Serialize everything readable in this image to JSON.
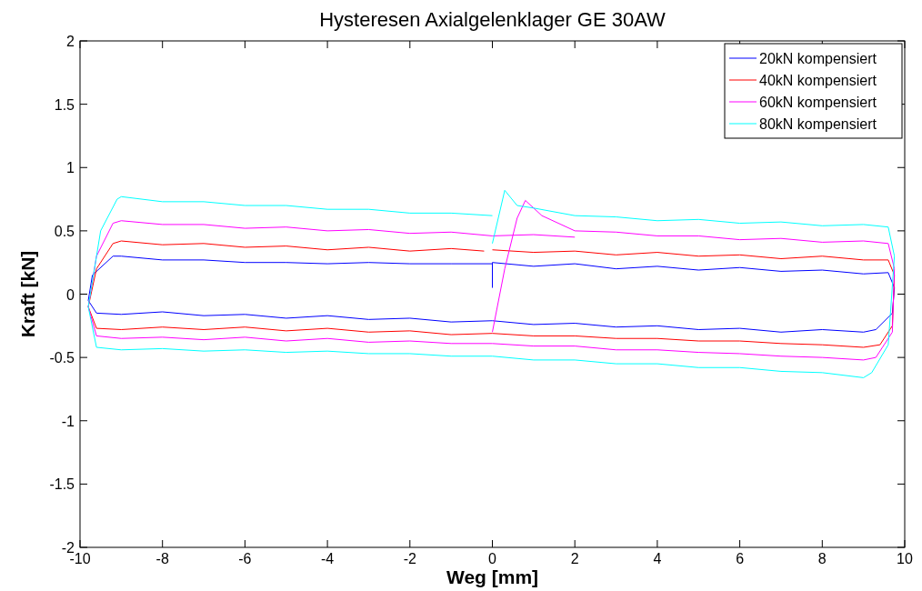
{
  "chart_data": {
    "type": "line",
    "title": "Hysteresen Axialgelenklager GE 30AW",
    "xlabel": "Weg [mm]",
    "ylabel": "Kraft [kN]",
    "xlim": [
      -10,
      10
    ],
    "ylim": [
      -2,
      2
    ],
    "xticks": [
      -10,
      -8,
      -6,
      -4,
      -2,
      0,
      2,
      4,
      6,
      8,
      10
    ],
    "yticks": [
      -2,
      -1.5,
      -1,
      -0.5,
      0,
      0.5,
      1,
      1.5,
      2
    ],
    "grid": false,
    "legend": "top right",
    "marker": "none",
    "line_style": "solid",
    "series": [
      {
        "name": "20kN kompensiert",
        "color": "#0000ff",
        "x": [
          0,
          0,
          1,
          2,
          3,
          4,
          5,
          6,
          7,
          8,
          9,
          9.6,
          9.75,
          9.7,
          9.3,
          9,
          8,
          7,
          6,
          5,
          4,
          3,
          2,
          1,
          0,
          -1,
          -2,
          -3,
          -4,
          -5,
          -6,
          -7,
          -8,
          -9,
          -9.6,
          -9.8,
          -9.7,
          -9.2,
          -9,
          -8,
          -7,
          -6,
          -5,
          -4,
          -3,
          -2,
          -1,
          0
        ],
        "values": [
          0.05,
          0.25,
          0.22,
          0.24,
          0.2,
          0.22,
          0.19,
          0.21,
          0.18,
          0.19,
          0.16,
          0.17,
          0.05,
          -0.15,
          -0.28,
          -0.3,
          -0.28,
          -0.3,
          -0.27,
          -0.28,
          -0.25,
          -0.26,
          -0.23,
          -0.24,
          -0.21,
          -0.22,
          -0.19,
          -0.2,
          -0.17,
          -0.19,
          -0.16,
          -0.17,
          -0.14,
          -0.16,
          -0.15,
          -0.05,
          0.15,
          0.3,
          0.3,
          0.27,
          0.27,
          0.25,
          0.25,
          0.24,
          0.25,
          0.24,
          0.24,
          0.24
        ]
      },
      {
        "name": "40kN kompensiert",
        "color": "#ff0000",
        "x": [
          0,
          1,
          2,
          3,
          4,
          5,
          6,
          7,
          8,
          9,
          9.6,
          9.75,
          9.7,
          9.4,
          9,
          8,
          7,
          6,
          5,
          4,
          3,
          2,
          1,
          0,
          -1,
          -2,
          -3,
          -4,
          -5,
          -6,
          -7,
          -8,
          -9,
          -9.6,
          -9.8,
          -9.6,
          -9.2,
          -9,
          -8,
          -7,
          -6,
          -5,
          -4,
          -3,
          -2,
          -1,
          -0.2
        ],
        "values": [
          0.35,
          0.33,
          0.34,
          0.31,
          0.33,
          0.3,
          0.31,
          0.28,
          0.3,
          0.27,
          0.27,
          0.15,
          -0.25,
          -0.4,
          -0.42,
          -0.4,
          -0.39,
          -0.37,
          -0.37,
          -0.35,
          -0.35,
          -0.33,
          -0.33,
          -0.31,
          -0.32,
          -0.29,
          -0.3,
          -0.27,
          -0.29,
          -0.26,
          -0.28,
          -0.26,
          -0.28,
          -0.27,
          -0.1,
          0.2,
          0.4,
          0.42,
          0.39,
          0.4,
          0.37,
          0.38,
          0.35,
          0.37,
          0.34,
          0.36,
          0.34
        ]
      },
      {
        "name": "60kN kompensiert",
        "color": "#ff00ff",
        "x": [
          0,
          0.3,
          0.6,
          0.8,
          1.2,
          2,
          3,
          4,
          5,
          6,
          7,
          8,
          9,
          9.6,
          9.75,
          9.7,
          9.3,
          9,
          8,
          7,
          6,
          5,
          4,
          3,
          2,
          1,
          0,
          -1,
          -2,
          -3,
          -4,
          -5,
          -6,
          -7,
          -8,
          -9,
          -9.6,
          -9.8,
          -9.6,
          -9.2,
          -9,
          -8,
          -7,
          -6,
          -5,
          -4,
          -3,
          -2,
          -1,
          0,
          1,
          2
        ],
        "values": [
          -0.3,
          0.2,
          0.6,
          0.74,
          0.62,
          0.5,
          0.49,
          0.46,
          0.46,
          0.43,
          0.44,
          0.41,
          0.42,
          0.4,
          0.2,
          -0.3,
          -0.5,
          -0.52,
          -0.5,
          -0.49,
          -0.47,
          -0.46,
          -0.44,
          -0.44,
          -0.41,
          -0.41,
          -0.39,
          -0.39,
          -0.37,
          -0.38,
          -0.35,
          -0.37,
          -0.34,
          -0.36,
          -0.34,
          -0.35,
          -0.33,
          -0.1,
          0.3,
          0.56,
          0.58,
          0.55,
          0.55,
          0.52,
          0.53,
          0.5,
          0.51,
          0.48,
          0.49,
          0.46,
          0.47,
          0.45
        ]
      },
      {
        "name": "80kN kompensiert",
        "color": "#00ffff",
        "x": [
          0,
          0.3,
          0.6,
          1,
          2,
          3,
          4,
          5,
          6,
          7,
          8,
          9,
          9.6,
          9.75,
          9.6,
          9.2,
          9,
          8,
          7,
          6,
          5,
          4,
          3,
          2,
          1,
          0,
          -1,
          -2,
          -3,
          -4,
          -5,
          -6,
          -7,
          -8,
          -9,
          -9.6,
          -9.8,
          -9.5,
          -9.1,
          -9,
          -8,
          -7,
          -6,
          -5,
          -4,
          -3,
          -2,
          -1,
          0
        ],
        "values": [
          0.4,
          0.82,
          0.7,
          0.68,
          0.62,
          0.61,
          0.58,
          0.59,
          0.56,
          0.57,
          0.54,
          0.55,
          0.53,
          0.3,
          -0.4,
          -0.62,
          -0.66,
          -0.62,
          -0.61,
          -0.58,
          -0.58,
          -0.55,
          -0.55,
          -0.52,
          -0.52,
          -0.49,
          -0.49,
          -0.47,
          -0.47,
          -0.45,
          -0.46,
          -0.44,
          -0.45,
          -0.43,
          -0.44,
          -0.42,
          -0.1,
          0.5,
          0.75,
          0.77,
          0.73,
          0.73,
          0.7,
          0.7,
          0.67,
          0.67,
          0.64,
          0.64,
          0.62
        ]
      }
    ]
  }
}
